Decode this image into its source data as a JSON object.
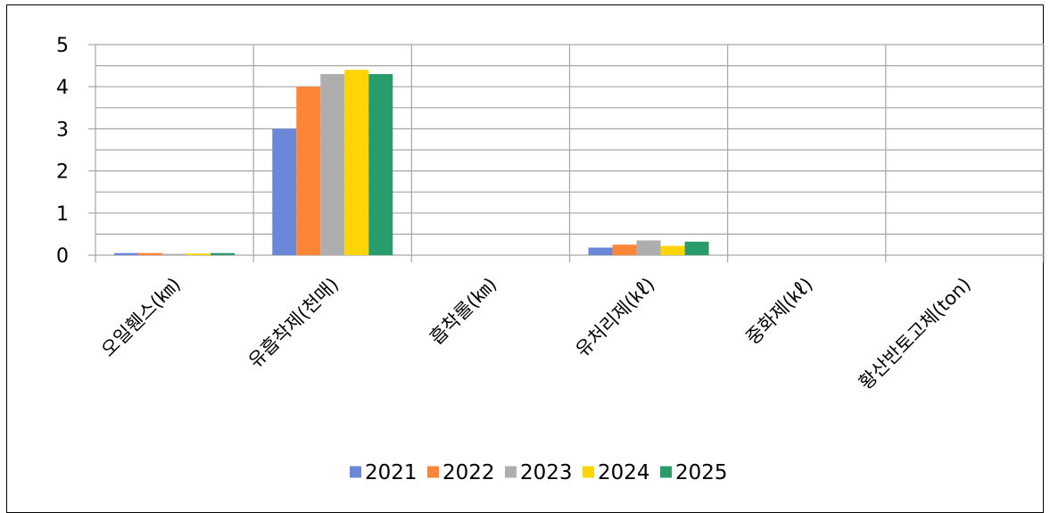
{
  "chart_data": {
    "type": "bar",
    "categories": [
      "오일휀스(㎞)",
      "유흡착제(천매)",
      "흡착롤(㎞)",
      "유처리제(㎘)",
      "중화제(㎘)",
      "황산반토고체(ton)"
    ],
    "series": [
      {
        "name": "2021",
        "values": [
          0.05,
          3.0,
          0,
          0.18,
          0,
          0
        ]
      },
      {
        "name": "2022",
        "values": [
          0.05,
          4.0,
          0,
          0.25,
          0,
          0
        ]
      },
      {
        "name": "2023",
        "values": [
          0.03,
          4.3,
          0,
          0.35,
          0,
          0
        ]
      },
      {
        "name": "2024",
        "values": [
          0.04,
          4.4,
          0,
          0.22,
          0,
          0
        ]
      },
      {
        "name": "2025",
        "values": [
          0.05,
          4.3,
          0,
          0.32,
          0,
          0
        ]
      }
    ],
    "ylim": [
      0,
      5
    ],
    "yticks": [
      0,
      1,
      2,
      3,
      4,
      5
    ],
    "grid": true,
    "legend_position": "bottom",
    "title": "",
    "xlabel": "",
    "ylabel": ""
  },
  "colors": {
    "series": [
      "#6a88d7",
      "#fd8537",
      "#aeaeae",
      "#fed502",
      "#2a9c6c"
    ],
    "grid": "#a6a6a6"
  }
}
